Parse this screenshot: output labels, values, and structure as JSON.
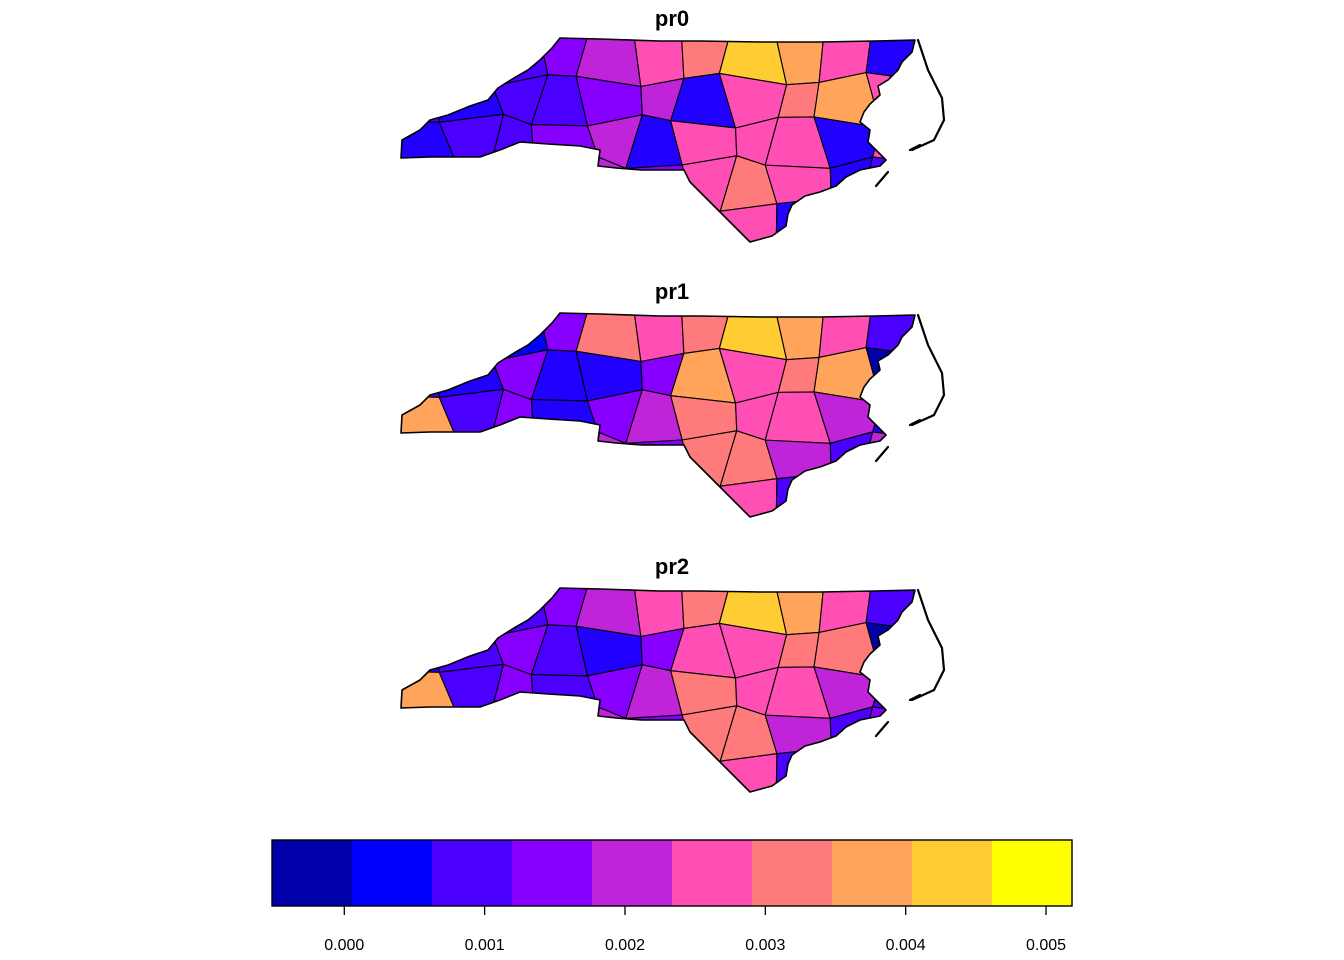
{
  "maps": [
    {
      "title": "pr0",
      "fills": [
        "#2200ff",
        "#2200ff",
        "#4b00ff",
        "#8700ff",
        "#bf24d8",
        "#ff4fb4",
        "#ff7a7a",
        "#ffcc33",
        "#ffa45a",
        "#ff4fb4",
        "#2200ff",
        "#4b00ff",
        "#2200ff",
        "#4b00ff",
        "#4b00ff",
        "#8700ff",
        "#bf24d8",
        "#2200ff",
        "#ff4fb4",
        "#ff7a7a",
        "#ffa45a",
        "#ff4fb4",
        "#2200ff",
        "#4b00ff",
        "#4b00ff",
        "#8700ff",
        "#bf24d8",
        "#2200ff",
        "#ff4fb4",
        "#ff4fb4",
        "#ff4fb4",
        "#2200ff",
        "#ff4fb4",
        "#4b00ff",
        "#8700ff",
        "#bf24d8",
        "#2200ff",
        "#bf24d8",
        "#8700ff",
        "#ff4fb4",
        "#ff7a7a",
        "#ff4fb4",
        "#2200ff",
        "#4b00ff",
        "#8700ff",
        "#bf24d8",
        "#bf24d8",
        "#ffa45a",
        "#ff4fb4",
        "#ff4fb4",
        "#ff4fb4",
        "#ff4fb4",
        "#2200ff",
        "#bf24d8",
        "#bf24d8"
      ]
    },
    {
      "title": "pr1",
      "fills": [
        "#0000ff",
        "#0000ff",
        "#0000ff",
        "#8700ff",
        "#ff7a7a",
        "#ff4fb4",
        "#ff7a7a",
        "#ffcc33",
        "#ffa45a",
        "#ff4fb4",
        "#4b00ff",
        "#4b00ff",
        "#2200ff",
        "#8700ff",
        "#2200ff",
        "#2200ff",
        "#8700ff",
        "#ffa45a",
        "#ff4fb4",
        "#ff7a7a",
        "#ffa45a",
        "#0000aa",
        "#ffa45a",
        "#4b00ff",
        "#8700ff",
        "#2200ff",
        "#8700ff",
        "#bf24d8",
        "#ff7a7a",
        "#ff4fb4",
        "#ff4fb4",
        "#bf24d8",
        "#2200ff",
        "#8700ff",
        "#bf24d8",
        "#ff4fb4",
        "#ffcc33",
        "#bf24d8",
        "#8700ff",
        "#ff7a7a",
        "#ff7a7a",
        "#bf24d8",
        "#4b00ff",
        "#bf24d8",
        "#8700ff",
        "#bf24d8",
        "#ffcc33",
        "#ffff00",
        "#ff4fb4",
        "#ff7a7a",
        "#ff4fb4",
        "#ff4fb4",
        "#4b00ff",
        "#ff4fb4",
        "#ff4fb4"
      ]
    },
    {
      "title": "pr2",
      "fills": [
        "#2200ff",
        "#2200ff",
        "#4b00ff",
        "#8700ff",
        "#bf24d8",
        "#ff4fb4",
        "#ff7a7a",
        "#ffcc33",
        "#ffa45a",
        "#ff4fb4",
        "#4b00ff",
        "#2200ff",
        "#4b00ff",
        "#8700ff",
        "#4b00ff",
        "#2200ff",
        "#8700ff",
        "#ff4fb4",
        "#ff4fb4",
        "#ff7a7a",
        "#ff7a7a",
        "#0000aa",
        "#ffa45a",
        "#4b00ff",
        "#8700ff",
        "#4b00ff",
        "#8700ff",
        "#bf24d8",
        "#ff7a7a",
        "#ff4fb4",
        "#ff4fb4",
        "#bf24d8",
        "#4b00ff",
        "#8700ff",
        "#bf24d8",
        "#ff4fb4",
        "#ffcc33",
        "#bf24d8",
        "#8700ff",
        "#ff7a7a",
        "#ff7a7a",
        "#bf24d8",
        "#4b00ff",
        "#8700ff",
        "#4b00ff",
        "#bf24d8",
        "#ffcc33",
        "#ffff00",
        "#ff7a7a",
        "#ff7a7a",
        "#ffa45a",
        "#ff4fb4",
        "#4b00ff",
        "#ff7a7a",
        "#ff4fb4"
      ]
    }
  ],
  "legend": {
    "colors": [
      "#0000aa",
      "#0000ff",
      "#4b00ff",
      "#8700ff",
      "#bf24d8",
      "#ff4fb4",
      "#ff7a7a",
      "#ffa45a",
      "#ffcc33",
      "#ffff00"
    ],
    "ticks": [
      {
        "value": 0.0,
        "label": "0.000"
      },
      {
        "value": 0.001,
        "label": "0.001"
      },
      {
        "value": 0.002,
        "label": "0.002"
      },
      {
        "value": 0.003,
        "label": "0.003"
      },
      {
        "value": 0.004,
        "label": "0.004"
      },
      {
        "value": 0.005,
        "label": "0.005"
      }
    ],
    "range": [
      -0.000515,
      0.005185
    ]
  }
}
